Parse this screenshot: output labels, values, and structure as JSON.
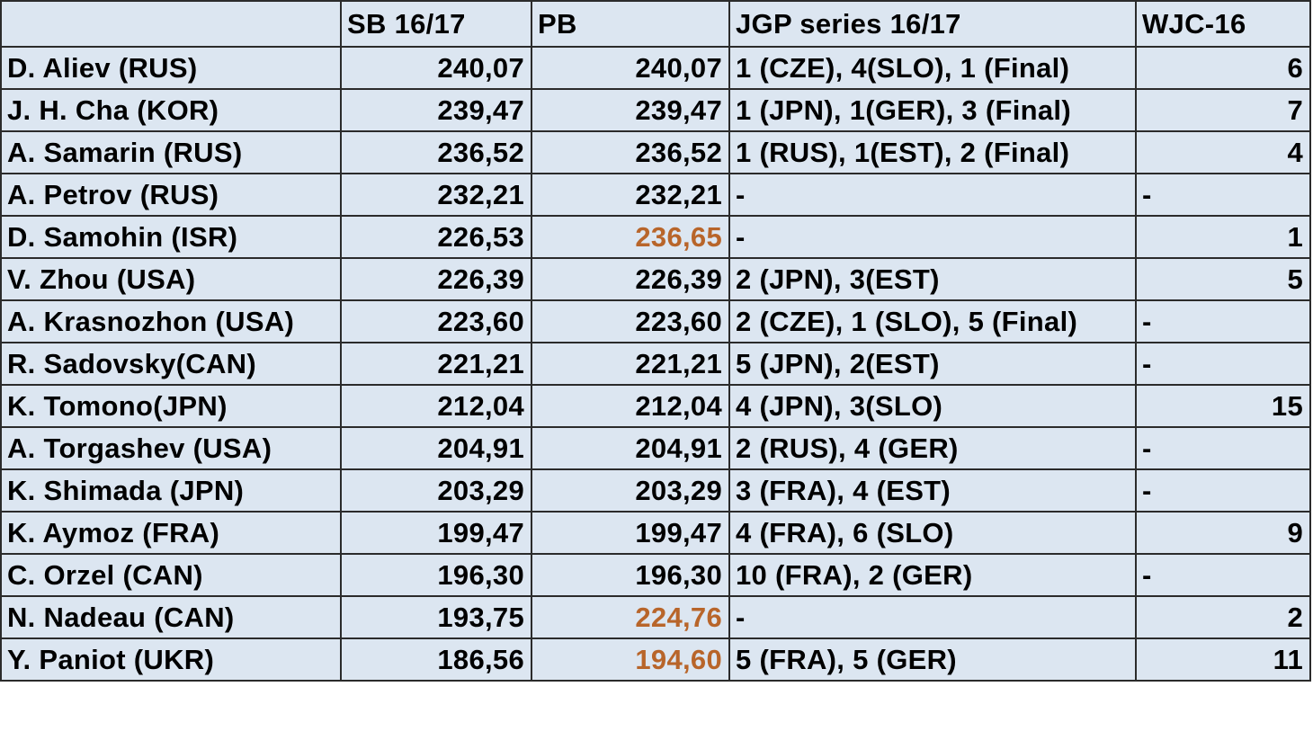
{
  "table": {
    "headers": [
      "",
      "SB 16/17",
      "PB",
      "JGP series 16/17",
      "WJC-16"
    ],
    "highlight_color": "#b8652a",
    "rows": [
      {
        "skater": "D. Aliev (RUS)",
        "sb": "240,07",
        "pb": "240,07",
        "pb_highlight": false,
        "jgp": "1 (CZE), 4(SLO), 1 (Final)",
        "wjc": "6"
      },
      {
        "skater": "J. H. Cha (KOR)",
        "sb": "239,47",
        "pb": "239,47",
        "pb_highlight": false,
        "jgp": "1 (JPN), 1(GER), 3 (Final)",
        "wjc": "7"
      },
      {
        "skater": "A. Samarin (RUS)",
        "sb": "236,52",
        "pb": "236,52",
        "pb_highlight": false,
        "jgp": "1 (RUS), 1(EST), 2 (Final)",
        "wjc": "4"
      },
      {
        "skater": "A. Petrov (RUS)",
        "sb": "232,21",
        "pb": "232,21",
        "pb_highlight": false,
        "jgp": "-",
        "wjc": "-"
      },
      {
        "skater": "D. Samohin (ISR)",
        "sb": "226,53",
        "pb": "236,65",
        "pb_highlight": true,
        "jgp": "-",
        "wjc": "1"
      },
      {
        "skater": "V. Zhou (USA)",
        "sb": "226,39",
        "pb": "226,39",
        "pb_highlight": false,
        "jgp": "2 (JPN), 3(EST)",
        "wjc": "5"
      },
      {
        "skater": "A. Krasnozhon (USA)",
        "sb": "223,60",
        "pb": "223,60",
        "pb_highlight": false,
        "jgp": "2 (CZE), 1 (SLO), 5 (Final)",
        "wjc": "-"
      },
      {
        "skater": "R. Sadovsky(CAN)",
        "sb": "221,21",
        "pb": "221,21",
        "pb_highlight": false,
        "jgp": "5 (JPN), 2(EST)",
        "wjc": "-"
      },
      {
        "skater": "K. Tomono(JPN)",
        "sb": "212,04",
        "pb": "212,04",
        "pb_highlight": false,
        "jgp": "4 (JPN), 3(SLO)",
        "wjc": "15"
      },
      {
        "skater": "A. Torgashev (USA)",
        "sb": "204,91",
        "pb": "204,91",
        "pb_highlight": false,
        "jgp": "2 (RUS), 4 (GER)",
        "wjc": "-"
      },
      {
        "skater": "K. Shimada (JPN)",
        "sb": "203,29",
        "pb": "203,29",
        "pb_highlight": false,
        "jgp": "3 (FRA), 4 (EST)",
        "wjc": "-"
      },
      {
        "skater": "K. Aymoz (FRA)",
        "sb": "199,47",
        "pb": "199,47",
        "pb_highlight": false,
        "jgp": "4 (FRA), 6 (SLO)",
        "wjc": "9"
      },
      {
        "skater": "C. Orzel (CAN)",
        "sb": "196,30",
        "pb": "196,30",
        "pb_highlight": false,
        "jgp": "10 (FRA), 2 (GER)",
        "wjc": "-"
      },
      {
        "skater": "N. Nadeau (CAN)",
        "sb": "193,75",
        "pb": "224,76",
        "pb_highlight": true,
        "jgp": "-",
        "wjc": "2"
      },
      {
        "skater": "Y. Paniot (UKR)",
        "sb": "186,56",
        "pb": "194,60",
        "pb_highlight": true,
        "jgp": "5 (FRA), 5 (GER)",
        "wjc": "11"
      }
    ]
  }
}
